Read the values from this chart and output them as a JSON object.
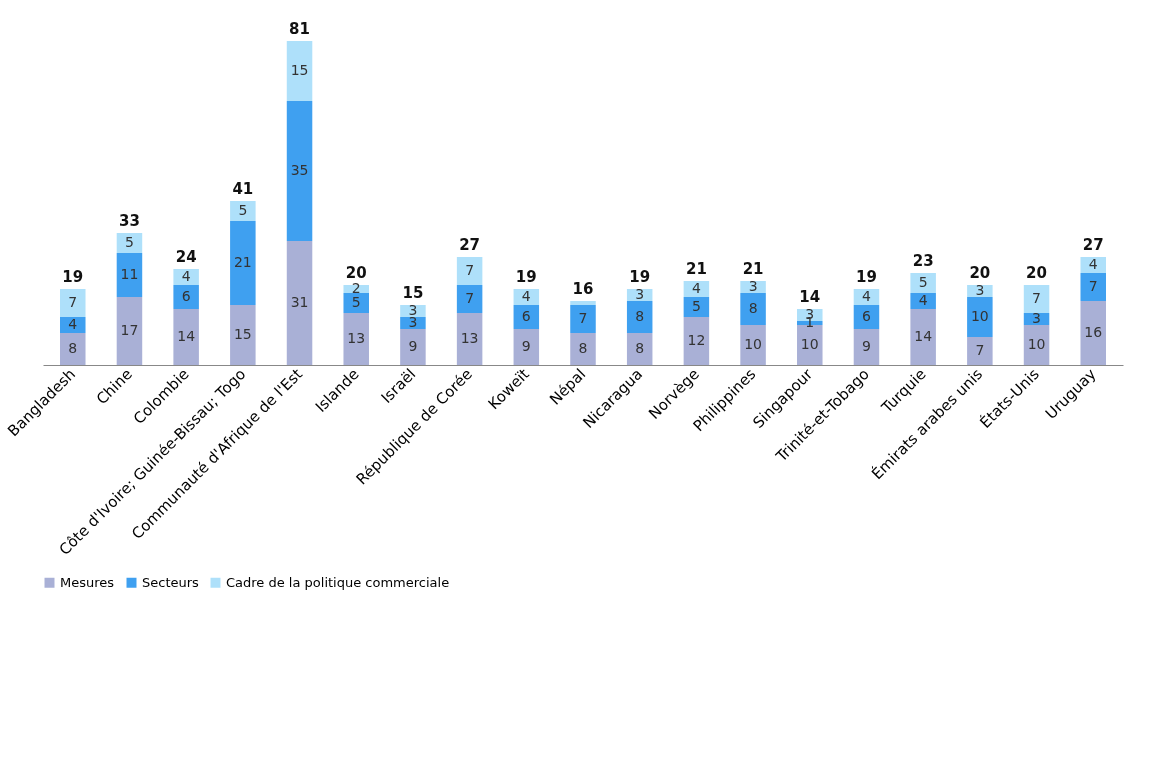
{
  "chart_data": {
    "type": "bar",
    "stacked": true,
    "legend": "bottom",
    "grid": false,
    "categories": [
      "Bangladesh",
      "Chine",
      "Colombie",
      "Côte d'Ivoire; Guinée-Bissau; Togo",
      "Communauté d'Afrique de l'Est",
      "Islande",
      "Israël",
      "République de Corée",
      "Koweït",
      "Népal",
      "Nicaragua",
      "Norvège",
      "Philippines",
      "Singapour",
      "Trinité-et-Tobago",
      "Turquie",
      "Émirats arabes unis",
      "États-Unis",
      "Uruguay"
    ],
    "series": [
      {
        "name": "Mesures",
        "color": "#a9b0d6",
        "values": [
          8,
          17,
          14,
          15,
          31,
          13,
          9,
          13,
          9,
          8,
          8,
          12,
          10,
          10,
          9,
          14,
          7,
          10,
          16
        ],
        "value_labels": [
          "8",
          "17",
          "14",
          "15",
          "31",
          "13",
          "9",
          "13",
          "9",
          "8",
          "8",
          "12",
          "10",
          "10",
          "9",
          "14",
          "7",
          "10",
          "16"
        ]
      },
      {
        "name": "Secteurs",
        "color": "#3fa0f0",
        "values": [
          4,
          11,
          6,
          21,
          35,
          5,
          3,
          7,
          6,
          7,
          8,
          5,
          8,
          1,
          6,
          4,
          10,
          3,
          7
        ],
        "value_labels": [
          "4",
          "11",
          "6",
          "21",
          "35",
          "5",
          "3",
          "7",
          "6",
          "7",
          "8",
          "5",
          "8",
          "1",
          "6",
          "4",
          "10",
          "3",
          "7"
        ]
      },
      {
        "name": "Cadre de la politique commerciale",
        "color": "#aee0fa",
        "values": [
          7,
          5,
          4,
          5,
          15,
          2,
          3,
          7,
          4,
          1,
          3,
          4,
          3,
          3,
          4,
          5,
          3,
          7,
          4
        ],
        "value_labels": [
          "7",
          "5",
          "4",
          "5",
          "15",
          "2",
          "3",
          "7",
          "4",
          null,
          "3",
          "4",
          "3",
          "3",
          "4",
          "5",
          "3",
          "7",
          "4"
        ]
      }
    ],
    "totals": [
      "19",
      "33",
      "24",
      "41",
      "81",
      "20",
      "15",
      "27",
      "19",
      "16",
      "19",
      "21",
      "21",
      "14",
      "19",
      "23",
      "20",
      "20",
      "27"
    ]
  }
}
